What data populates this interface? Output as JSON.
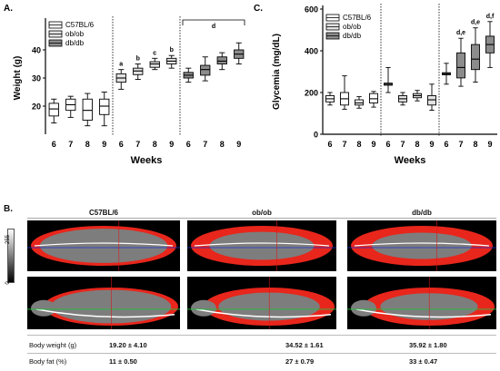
{
  "panel_a": {
    "label": "A.",
    "chart_data": {
      "type": "box",
      "title": "",
      "xlabel": "Weeks",
      "ylabel": "Weight (g)",
      "ylim": [
        10,
        50
      ],
      "yticks": [
        20,
        30,
        40
      ],
      "groups": [
        {
          "name": "C57BL/6",
          "color": "#ffffff",
          "weeks": [
            "6",
            "7",
            "8",
            "9"
          ],
          "boxes": [
            {
              "min": 14,
              "q1": 16.5,
              "median": 19,
              "q3": 21,
              "max": 22.5,
              "letter": ""
            },
            {
              "min": 16,
              "q1": 18.5,
              "median": 20.5,
              "q3": 22.5,
              "max": 23.5,
              "letter": ""
            },
            {
              "min": 13,
              "q1": 15,
              "median": 18.5,
              "q3": 22.5,
              "max": 24.5,
              "letter": ""
            },
            {
              "min": 13,
              "q1": 17,
              "median": 20,
              "q3": 22.5,
              "max": 25,
              "letter": ""
            }
          ]
        },
        {
          "name": "ob/ob",
          "color": "#e2e2e2",
          "weeks": [
            "6",
            "7",
            "8",
            "9"
          ],
          "boxes": [
            {
              "min": 26,
              "q1": 28.5,
              "median": 30,
              "q3": 31.5,
              "max": 33,
              "letter": "a"
            },
            {
              "min": 29.5,
              "q1": 31.2,
              "median": 32.5,
              "q3": 33.5,
              "max": 35,
              "letter": "b"
            },
            {
              "min": 33,
              "q1": 33.8,
              "median": 35,
              "q3": 35.8,
              "max": 37,
              "letter": "c"
            },
            {
              "min": 33.5,
              "q1": 35,
              "median": 36,
              "q3": 37,
              "max": 38,
              "letter": "b"
            }
          ]
        },
        {
          "name": "db/db",
          "color": "#8c8c8c",
          "weeks": [
            "6",
            "7",
            "8",
            "9"
          ],
          "boxes": [
            {
              "min": 28.5,
              "q1": 30,
              "median": 31,
              "q3": 32,
              "max": 33.5,
              "letter": ""
            },
            {
              "min": 29,
              "q1": 31,
              "median": 33,
              "q3": 34.5,
              "max": 37.5,
              "letter": ""
            },
            {
              "min": 33,
              "q1": 35,
              "median": 36,
              "q3": 37.5,
              "max": 39,
              "letter": ""
            },
            {
              "min": 35,
              "q1": 37,
              "median": 38.5,
              "q3": 40,
              "max": 42.5,
              "letter": ""
            }
          ]
        }
      ],
      "bracket_letter": "d",
      "legend": [
        "C57BL/6",
        "ob/ob",
        "db/db"
      ],
      "legend_position": "top-left"
    }
  },
  "panel_c": {
    "label": "C.",
    "chart_data": {
      "type": "box",
      "title": "",
      "xlabel": "Weeks",
      "ylabel": "Glycemia (mg/dL)",
      "ylim": [
        0,
        600
      ],
      "yticks": [
        0,
        200,
        400,
        600
      ],
      "groups": [
        {
          "name": "C57BL/6",
          "color": "#ffffff",
          "weeks": [
            "6",
            "7",
            "8",
            "9"
          ],
          "boxes": [
            {
              "min": 140,
              "q1": 155,
              "median": 170,
              "q3": 185,
              "max": 200,
              "letter": ""
            },
            {
              "min": 120,
              "q1": 140,
              "median": 170,
              "q3": 200,
              "max": 280,
              "letter": ""
            },
            {
              "min": 125,
              "q1": 140,
              "median": 150,
              "q3": 165,
              "max": 180,
              "letter": ""
            },
            {
              "min": 130,
              "q1": 150,
              "median": 170,
              "q3": 195,
              "max": 205,
              "letter": ""
            }
          ]
        },
        {
          "name": "ob/ob",
          "color": "#e2e2e2",
          "weeks": [
            "6",
            "7",
            "8",
            "9"
          ],
          "boxes": [
            {
              "min": 200,
              "q1": 235,
              "median": 240,
              "q3": 245,
              "max": 320,
              "letter": ""
            },
            {
              "min": 140,
              "q1": 155,
              "median": 170,
              "q3": 185,
              "max": 200,
              "letter": ""
            },
            {
              "min": 160,
              "q1": 175,
              "median": 185,
              "q3": 195,
              "max": 210,
              "letter": ""
            },
            {
              "min": 115,
              "q1": 140,
              "median": 165,
              "q3": 185,
              "max": 240,
              "letter": ""
            }
          ]
        },
        {
          "name": "db/db",
          "color": "#8c8c8c",
          "weeks": [
            "6",
            "7",
            "8",
            "9"
          ],
          "boxes": [
            {
              "min": 240,
              "q1": 285,
              "median": 290,
              "q3": 295,
              "max": 340,
              "letter": ""
            },
            {
              "min": 230,
              "q1": 270,
              "median": 320,
              "q3": 390,
              "max": 460,
              "letter": "d,e"
            },
            {
              "min": 250,
              "q1": 310,
              "median": 360,
              "q3": 430,
              "max": 510,
              "letter": "d,e"
            },
            {
              "min": 320,
              "q1": 390,
              "median": 430,
              "q3": 470,
              "max": 540,
              "letter": "d,f"
            }
          ]
        }
      ],
      "legend": [
        "C57BL/6",
        "ob/ob",
        "db/db"
      ],
      "legend_position": "top-left"
    }
  },
  "panel_b": {
    "label": "B.",
    "scale_top": "255",
    "scale_bottom": "0",
    "columns": [
      "C57BL/6",
      "ob/ob",
      "db/db"
    ],
    "table": [
      {
        "label": "Body weight (g)",
        "values": [
          "19.20 ± 4.10",
          "34.52 ± 1.61",
          "35.92 ± 1.80"
        ]
      },
      {
        "label": "Body fat (%)",
        "values": [
          "11 ± 0.50",
          "27 ± 0.79",
          "33 ± 0.47"
        ]
      }
    ],
    "colors": {
      "fat": "#e8261c",
      "tissue": "#7d7d7d",
      "bone": "#ffffff",
      "line_blue": "#1f2fd0",
      "line_green": "#22c03a",
      "line_red": "#d21a1a"
    }
  }
}
